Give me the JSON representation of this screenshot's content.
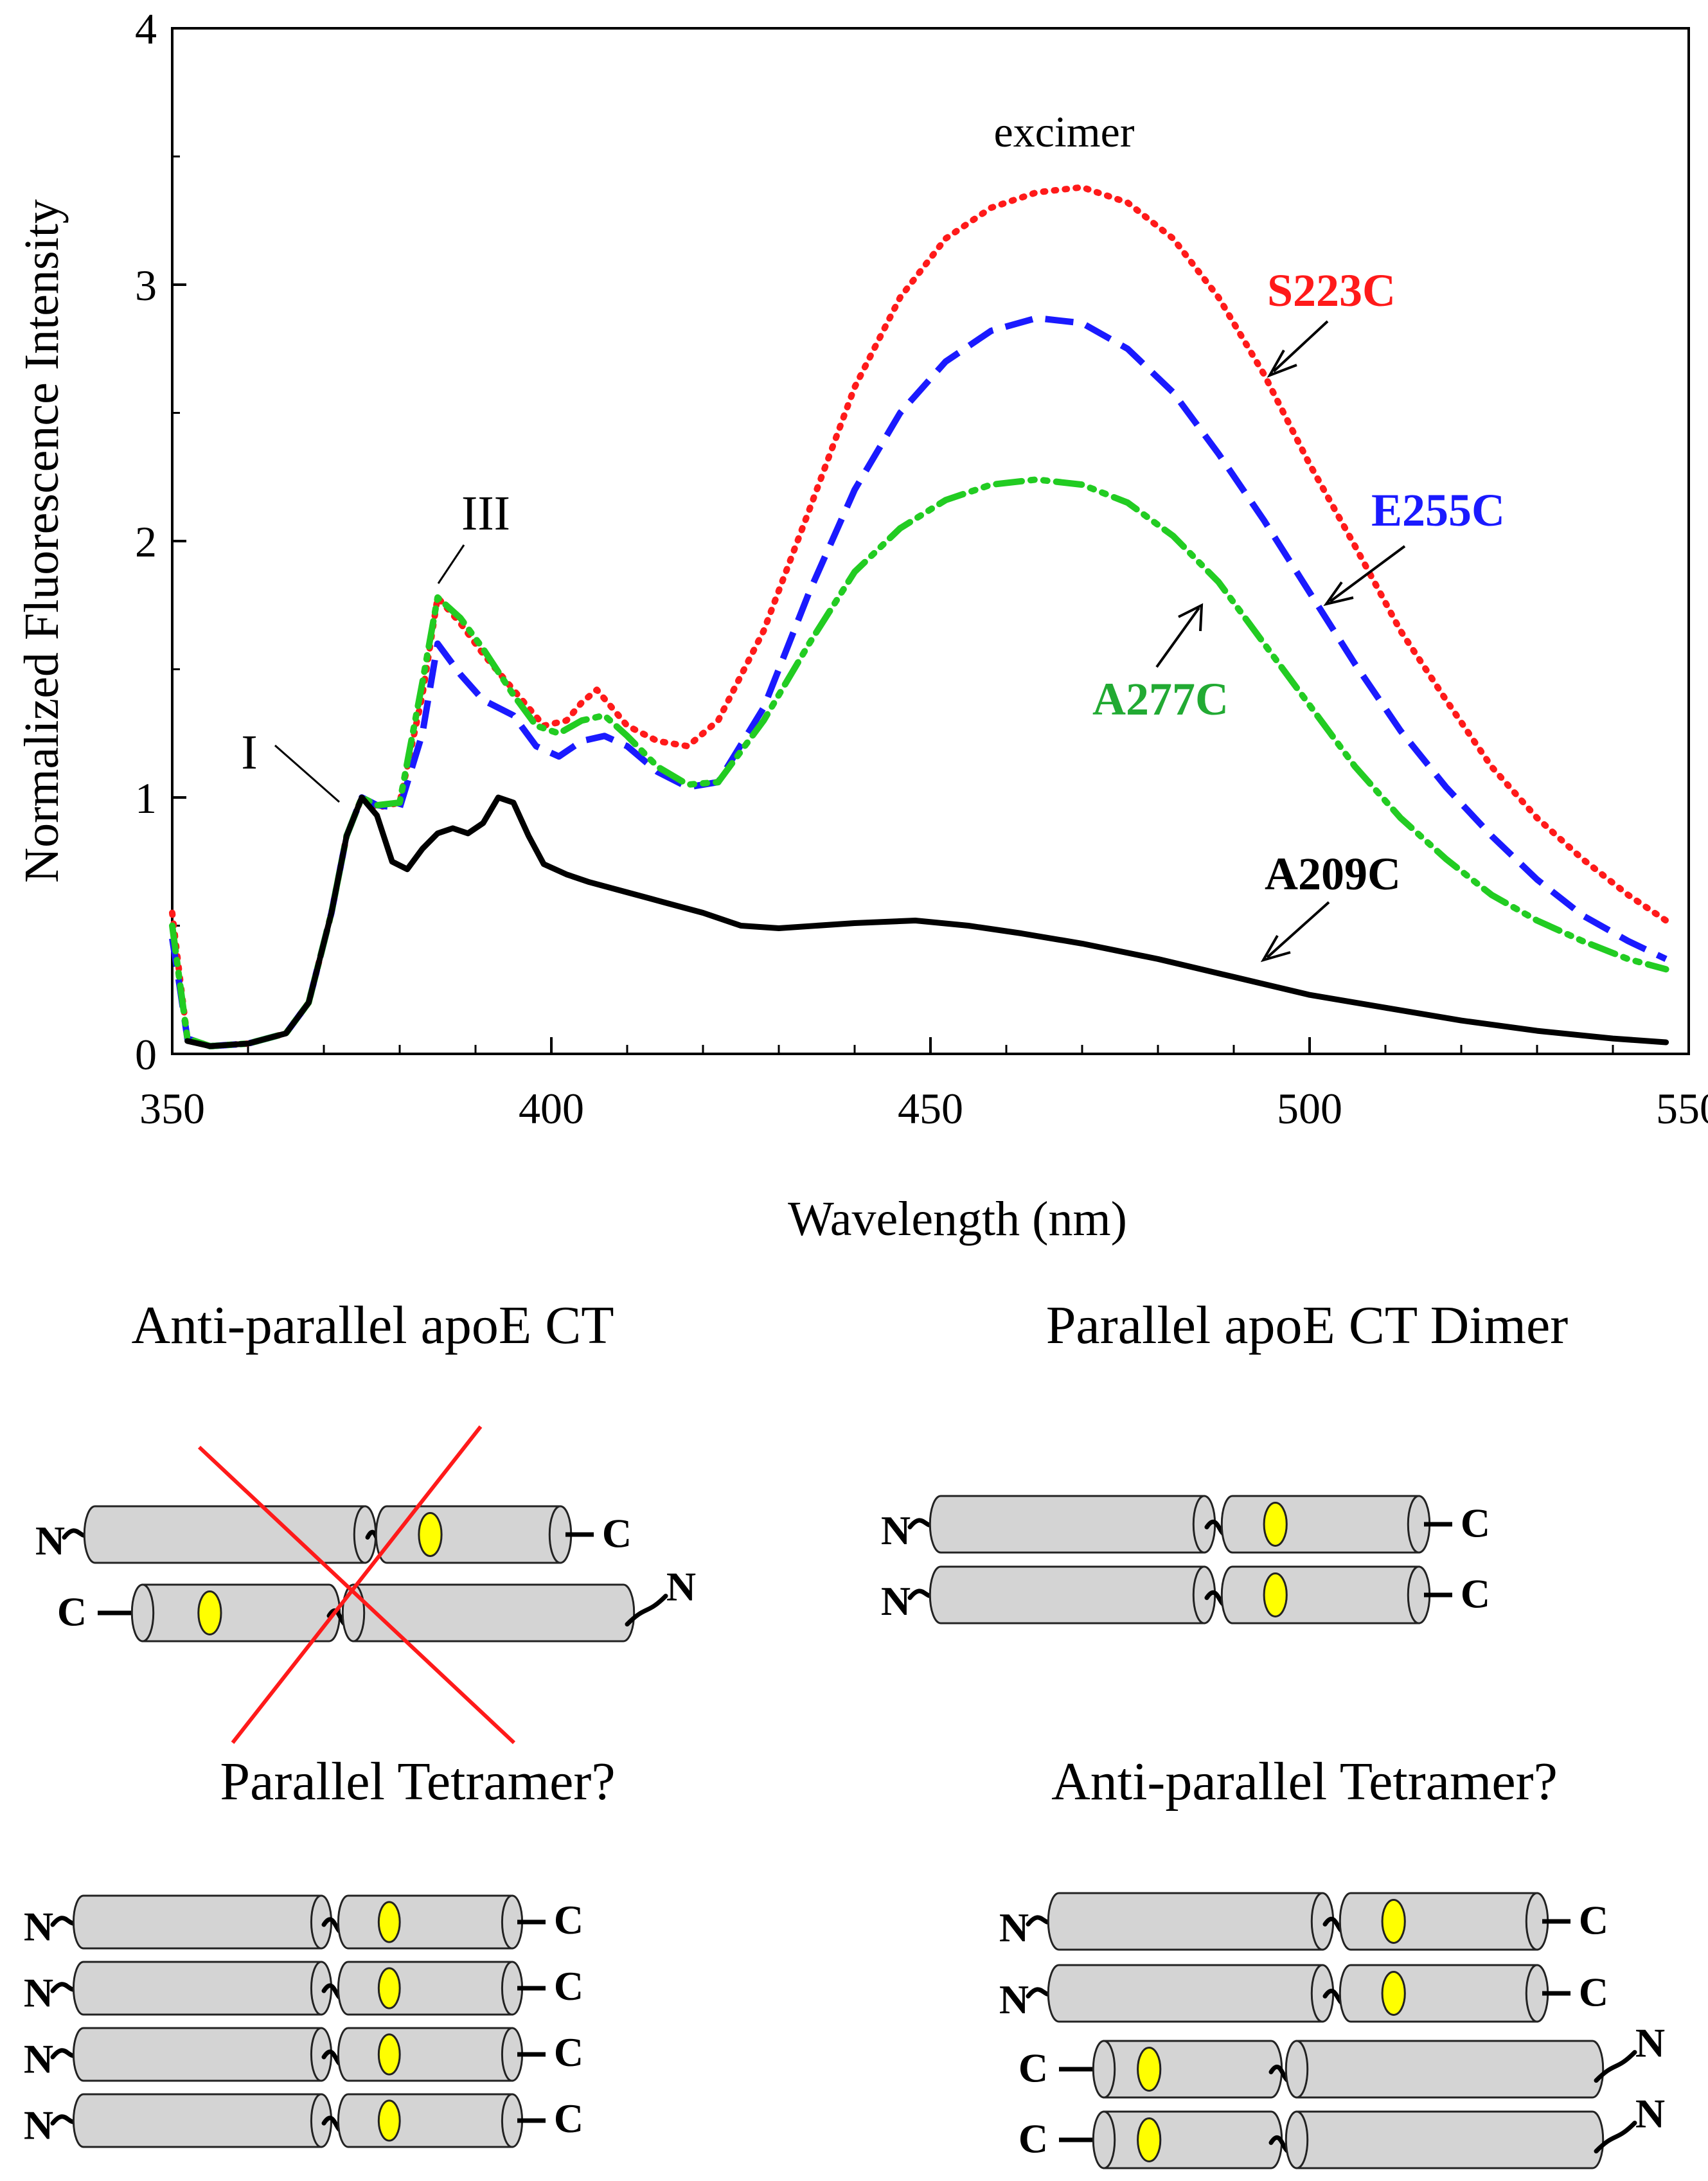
{
  "chart_data": {
    "type": "line",
    "xlabel": "Wavelength (nm)",
    "ylabel": "Normalized Fluorescence Intensity",
    "xlim": [
      350,
      550
    ],
    "ylim": [
      0,
      4
    ],
    "x_ticks": [
      "350",
      "400",
      "450",
      "500",
      "550"
    ],
    "y_ticks": [
      "0",
      "1",
      "2",
      "3",
      "4"
    ],
    "grid": false,
    "series": [
      {
        "name": "S223C",
        "color": "#ff1a1a",
        "style": "dotted",
        "points": [
          [
            350,
            0.55
          ],
          [
            351,
            0.3
          ],
          [
            352,
            0.06
          ],
          [
            355,
            0.03
          ],
          [
            360,
            0.04
          ],
          [
            365,
            0.08
          ],
          [
            368,
            0.2
          ],
          [
            371,
            0.55
          ],
          [
            373,
            0.85
          ],
          [
            375,
            1.0
          ],
          [
            377,
            0.96
          ],
          [
            380,
            0.98
          ],
          [
            383,
            1.4
          ],
          [
            385,
            1.78
          ],
          [
            388,
            1.68
          ],
          [
            391,
            1.56
          ],
          [
            395,
            1.42
          ],
          [
            399,
            1.28
          ],
          [
            402,
            1.3
          ],
          [
            404,
            1.37
          ],
          [
            406,
            1.42
          ],
          [
            408,
            1.35
          ],
          [
            410,
            1.28
          ],
          [
            414,
            1.22
          ],
          [
            418,
            1.2
          ],
          [
            422,
            1.3
          ],
          [
            428,
            1.65
          ],
          [
            434,
            2.12
          ],
          [
            440,
            2.6
          ],
          [
            446,
            2.95
          ],
          [
            452,
            3.18
          ],
          [
            458,
            3.3
          ],
          [
            464,
            3.36
          ],
          [
            470,
            3.38
          ],
          [
            476,
            3.32
          ],
          [
            482,
            3.18
          ],
          [
            488,
            2.95
          ],
          [
            494,
            2.65
          ],
          [
            500,
            2.3
          ],
          [
            506,
            1.98
          ],
          [
            512,
            1.65
          ],
          [
            518,
            1.38
          ],
          [
            524,
            1.12
          ],
          [
            530,
            0.92
          ],
          [
            536,
            0.76
          ],
          [
            542,
            0.62
          ],
          [
            547,
            0.52
          ]
        ]
      },
      {
        "name": "E255C",
        "color": "#1a1aff",
        "style": "dashed",
        "points": [
          [
            350,
            0.45
          ],
          [
            351,
            0.26
          ],
          [
            352,
            0.06
          ],
          [
            355,
            0.03
          ],
          [
            360,
            0.04
          ],
          [
            365,
            0.08
          ],
          [
            368,
            0.2
          ],
          [
            371,
            0.55
          ],
          [
            373,
            0.85
          ],
          [
            375,
            1.0
          ],
          [
            377,
            0.97
          ],
          [
            380,
            0.96
          ],
          [
            383,
            1.25
          ],
          [
            385,
            1.6
          ],
          [
            388,
            1.48
          ],
          [
            391,
            1.38
          ],
          [
            395,
            1.32
          ],
          [
            398,
            1.2
          ],
          [
            401,
            1.16
          ],
          [
            404,
            1.22
          ],
          [
            407,
            1.24
          ],
          [
            410,
            1.2
          ],
          [
            414,
            1.1
          ],
          [
            418,
            1.04
          ],
          [
            422,
            1.06
          ],
          [
            428,
            1.35
          ],
          [
            434,
            1.8
          ],
          [
            440,
            2.2
          ],
          [
            446,
            2.5
          ],
          [
            452,
            2.7
          ],
          [
            458,
            2.82
          ],
          [
            464,
            2.87
          ],
          [
            470,
            2.85
          ],
          [
            476,
            2.75
          ],
          [
            482,
            2.58
          ],
          [
            488,
            2.34
          ],
          [
            494,
            2.08
          ],
          [
            500,
            1.8
          ],
          [
            506,
            1.52
          ],
          [
            512,
            1.26
          ],
          [
            518,
            1.04
          ],
          [
            524,
            0.85
          ],
          [
            530,
            0.68
          ],
          [
            536,
            0.54
          ],
          [
            542,
            0.44
          ],
          [
            547,
            0.37
          ]
        ]
      },
      {
        "name": "A277C",
        "color": "#22cc22",
        "style": "dashdot",
        "points": [
          [
            350,
            0.5
          ],
          [
            351,
            0.28
          ],
          [
            352,
            0.06
          ],
          [
            355,
            0.03
          ],
          [
            360,
            0.04
          ],
          [
            365,
            0.08
          ],
          [
            368,
            0.2
          ],
          [
            371,
            0.55
          ],
          [
            373,
            0.85
          ],
          [
            375,
            1.0
          ],
          [
            377,
            0.97
          ],
          [
            380,
            0.98
          ],
          [
            383,
            1.45
          ],
          [
            385,
            1.78
          ],
          [
            388,
            1.7
          ],
          [
            391,
            1.58
          ],
          [
            395,
            1.4
          ],
          [
            398,
            1.28
          ],
          [
            401,
            1.25
          ],
          [
            404,
            1.3
          ],
          [
            407,
            1.32
          ],
          [
            410,
            1.24
          ],
          [
            414,
            1.12
          ],
          [
            418,
            1.05
          ],
          [
            422,
            1.06
          ],
          [
            428,
            1.3
          ],
          [
            434,
            1.6
          ],
          [
            440,
            1.88
          ],
          [
            446,
            2.05
          ],
          [
            452,
            2.16
          ],
          [
            458,
            2.22
          ],
          [
            464,
            2.24
          ],
          [
            470,
            2.22
          ],
          [
            476,
            2.15
          ],
          [
            482,
            2.02
          ],
          [
            488,
            1.84
          ],
          [
            494,
            1.6
          ],
          [
            500,
            1.36
          ],
          [
            506,
            1.12
          ],
          [
            512,
            0.92
          ],
          [
            518,
            0.76
          ],
          [
            524,
            0.62
          ],
          [
            530,
            0.52
          ],
          [
            536,
            0.44
          ],
          [
            542,
            0.37
          ],
          [
            547,
            0.33
          ]
        ]
      },
      {
        "name": "A209C",
        "color": "#000000",
        "style": "solid",
        "points": [
          [
            352,
            0.05
          ],
          [
            355,
            0.03
          ],
          [
            360,
            0.04
          ],
          [
            365,
            0.08
          ],
          [
            368,
            0.2
          ],
          [
            371,
            0.55
          ],
          [
            373,
            0.85
          ],
          [
            375,
            1.0
          ],
          [
            377,
            0.93
          ],
          [
            379,
            0.75
          ],
          [
            381,
            0.72
          ],
          [
            383,
            0.8
          ],
          [
            385,
            0.86
          ],
          [
            387,
            0.88
          ],
          [
            389,
            0.86
          ],
          [
            391,
            0.9
          ],
          [
            393,
            1.0
          ],
          [
            395,
            0.98
          ],
          [
            397,
            0.85
          ],
          [
            399,
            0.74
          ],
          [
            402,
            0.7
          ],
          [
            405,
            0.67
          ],
          [
            410,
            0.63
          ],
          [
            415,
            0.59
          ],
          [
            420,
            0.55
          ],
          [
            425,
            0.5
          ],
          [
            430,
            0.49
          ],
          [
            440,
            0.51
          ],
          [
            448,
            0.52
          ],
          [
            455,
            0.5
          ],
          [
            462,
            0.47
          ],
          [
            470,
            0.43
          ],
          [
            480,
            0.37
          ],
          [
            490,
            0.3
          ],
          [
            500,
            0.23
          ],
          [
            510,
            0.18
          ],
          [
            520,
            0.13
          ],
          [
            530,
            0.09
          ],
          [
            540,
            0.06
          ],
          [
            547,
            0.045
          ]
        ]
      }
    ],
    "annotations": [
      "excimer",
      "I",
      "III"
    ]
  },
  "diagram": {
    "titles": {
      "antiparallel_ct": "Anti-parallel apoE CT",
      "parallel_dimer": "Parallel apoE CT Dimer",
      "parallel_tetramer": "Parallel Tetramer?",
      "antiparallel_tetramer": "Anti-parallel Tetramer?"
    },
    "terminal_n": "N",
    "terminal_c": "C",
    "colors": {
      "helix_fill": "#d4d4d4",
      "probe": "#ffff00",
      "cross": "#ff1a1a"
    }
  }
}
